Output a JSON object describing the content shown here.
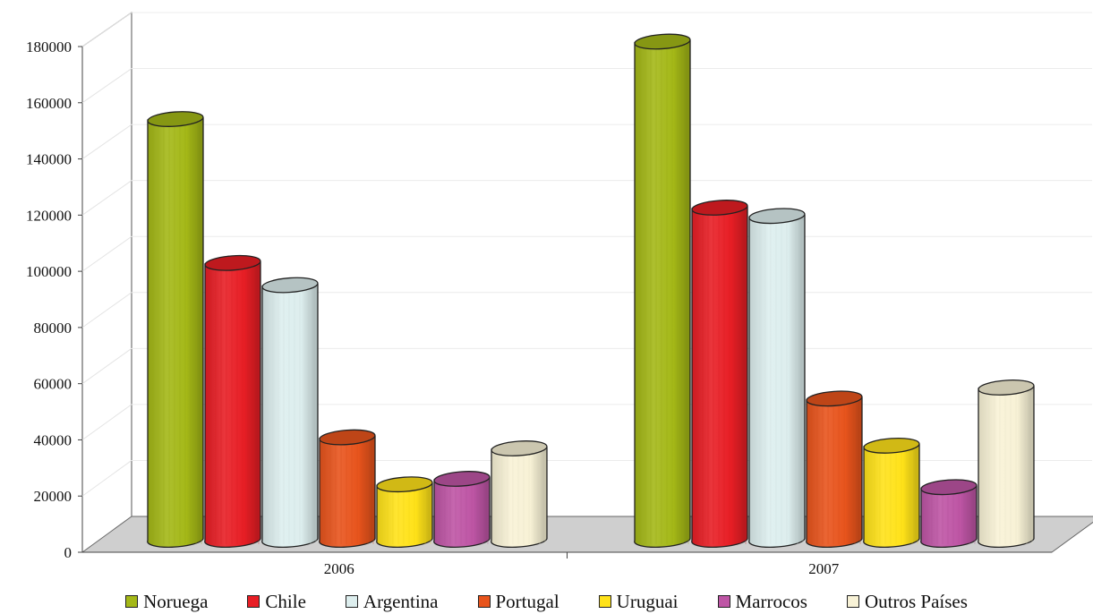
{
  "chart_data": {
    "type": "bar",
    "style": "3d-cylinder",
    "categories": [
      "2006",
      "2007"
    ],
    "series": [
      {
        "name": "Noruega",
        "color": "#a4b817",
        "values": [
          152000,
          180000
        ]
      },
      {
        "name": "Chile",
        "color": "#e81e25",
        "values": [
          100000,
          120000
        ]
      },
      {
        "name": "Argentina",
        "color": "#ddeeee",
        "values": [
          92000,
          117000
        ]
      },
      {
        "name": "Portugal",
        "color": "#e8541c",
        "values": [
          37000,
          51000
        ]
      },
      {
        "name": "Uruguai",
        "color": "#ffe219",
        "values": [
          20000,
          34000
        ]
      },
      {
        "name": "Marrocos",
        "color": "#be55a5",
        "values": [
          22000,
          19000
        ]
      },
      {
        "name": "Outros Países",
        "color": "#f8f2d6",
        "values": [
          33000,
          55000
        ]
      }
    ],
    "y_ticks": [
      "0",
      "20000",
      "40000",
      "60000",
      "80000",
      "100000",
      "120000",
      "140000",
      "160000",
      "180000"
    ],
    "ylim": [
      0,
      180000
    ],
    "grid": true,
    "legend_position": "bottom"
  }
}
